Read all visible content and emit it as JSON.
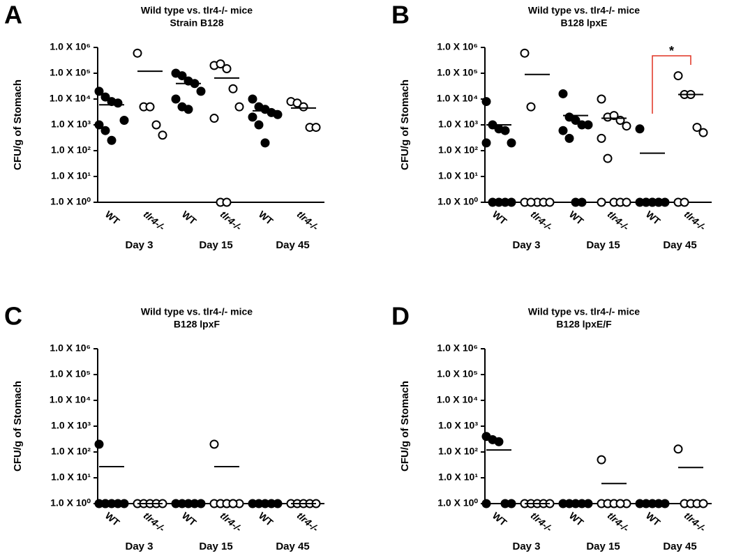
{
  "chart_data": [
    {
      "type": "dotplot",
      "panel": "A",
      "title": "Wild type vs. tlr4-/- mice",
      "subtitle": "Strain B128",
      "y_label": "CFU/g of Stomach",
      "log_y": true,
      "ylim": [
        1,
        1000000
      ],
      "yticks": [
        {
          "value": 1,
          "label": "1.0 X 10⁰"
        },
        {
          "value": 10,
          "label": "1.0 X 10¹"
        },
        {
          "value": 100,
          "label": "1.0 X 10²"
        },
        {
          "value": 1000,
          "label": "1.0 X 10³"
        },
        {
          "value": 10000,
          "label": "1.0 X 10⁴"
        },
        {
          "value": 100000,
          "label": "1.0 X 10⁵"
        },
        {
          "value": 1000000,
          "label": "1.0 X 10⁶"
        }
      ],
      "categories": [
        "WT",
        "tlr4-/-",
        "WT",
        "tlr4-/-",
        "WT",
        "tlr4-/-"
      ],
      "groups": [
        "Day 3",
        "Day 15",
        "Day 45"
      ],
      "filled": [
        true,
        false,
        true,
        false,
        true,
        false
      ],
      "values": [
        [
          20000,
          12000,
          8000,
          7000,
          1500,
          1000,
          600,
          250
        ],
        [
          600000,
          5000,
          5000,
          1000,
          400
        ],
        [
          100000,
          80000,
          50000,
          40000,
          20000,
          10000,
          5000,
          4000
        ],
        [
          200000,
          230000,
          150000,
          25000,
          5000,
          1800,
          1,
          1
        ],
        [
          10000,
          5000,
          4000,
          3000,
          2500,
          2000,
          1000,
          200
        ],
        [
          8000,
          7000,
          5000,
          800,
          800
        ]
      ],
      "means": [
        6000,
        120000,
        40000,
        65000,
        3500,
        4500
      ]
    },
    {
      "type": "dotplot",
      "panel": "B",
      "title": "Wild type vs. tlr4-/- mice",
      "subtitle": "B128 lpxE",
      "y_label": "CFU/g of Stomach",
      "log_y": true,
      "ylim": [
        1,
        1000000
      ],
      "yticks": [
        {
          "value": 1,
          "label": "1.0 X 10⁰"
        },
        {
          "value": 10,
          "label": "1.0 X 10¹"
        },
        {
          "value": 100,
          "label": "1.0 X 10²"
        },
        {
          "value": 1000,
          "label": "1.0 X 10³"
        },
        {
          "value": 10000,
          "label": "1.0 X 10⁴"
        },
        {
          "value": 100000,
          "label": "1.0 X 10⁵"
        },
        {
          "value": 1000000,
          "label": "1.0 X 10⁶"
        }
      ],
      "categories": [
        "WT",
        "tlr4-/-",
        "WT",
        "tlr4-/-",
        "WT",
        "tlr4-/-"
      ],
      "groups": [
        "Day 3",
        "Day 15",
        "Day 45"
      ],
      "filled": [
        true,
        false,
        true,
        false,
        true,
        false
      ],
      "values": [
        [
          8000,
          1000,
          700,
          600,
          200,
          200,
          1,
          1,
          1,
          1
        ],
        [
          600000,
          5000,
          1,
          1,
          1,
          1,
          1
        ],
        [
          16000,
          2000,
          1500,
          1000,
          1000,
          600,
          300,
          1,
          1
        ],
        [
          10000,
          2000,
          2300,
          1500,
          900,
          300,
          50,
          1,
          1,
          1,
          1
        ],
        [
          700,
          1,
          1,
          1,
          1,
          1,
          1,
          1,
          1
        ],
        [
          80000,
          15000,
          15000,
          800,
          500,
          1,
          1
        ]
      ],
      "means": [
        1000,
        90000,
        2300,
        1800,
        80,
        15000
      ],
      "significance": {
        "label": "*",
        "categories": [
          4,
          5
        ],
        "color": "#e03020"
      }
    },
    {
      "type": "dotplot",
      "panel": "C",
      "title": "Wild type vs. tlr4-/- mice",
      "subtitle": "B128 lpxF",
      "y_label": "CFU/g of Stomach",
      "log_y": true,
      "ylim": [
        1,
        1000000
      ],
      "yticks": [
        {
          "value": 1,
          "label": "1.0 X 10⁰"
        },
        {
          "value": 10,
          "label": "1.0 X 10¹"
        },
        {
          "value": 100,
          "label": "1.0 X 10²"
        },
        {
          "value": 1000,
          "label": "1.0 X 10³"
        },
        {
          "value": 10000,
          "label": "1.0 X 10⁴"
        },
        {
          "value": 100000,
          "label": "1.0 X 10⁵"
        },
        {
          "value": 1000000,
          "label": "1.0 X 10⁶"
        }
      ],
      "categories": [
        "WT",
        "tlr4-/-",
        "WT",
        "tlr4-/-",
        "WT",
        "tlr4-/-"
      ],
      "groups": [
        "Day 3",
        "Day 15",
        "Day 45"
      ],
      "filled": [
        true,
        false,
        true,
        false,
        true,
        false
      ],
      "values": [
        [
          200,
          1,
          1,
          1,
          1,
          1,
          1
        ],
        [
          1,
          1,
          1,
          1,
          1
        ],
        [
          1,
          1,
          1,
          1,
          1
        ],
        [
          200,
          1,
          1,
          1,
          1,
          1,
          1,
          1,
          1
        ],
        [
          1,
          1,
          1,
          1,
          1
        ],
        [
          1,
          1,
          1,
          1,
          1
        ]
      ],
      "means": [
        27,
        1,
        1,
        27,
        1,
        1
      ]
    },
    {
      "type": "dotplot",
      "panel": "D",
      "title": "Wild type vs. tlr4-/- mice",
      "subtitle": "B128 lpxE/F",
      "y_label": "CFU/g of Stomach",
      "log_y": true,
      "ylim": [
        1,
        1000000
      ],
      "yticks": [
        {
          "value": 1,
          "label": "1.0 X 10⁰"
        },
        {
          "value": 10,
          "label": "1.0 X 10¹"
        },
        {
          "value": 100,
          "label": "1.0 X 10²"
        },
        {
          "value": 1000,
          "label": "1.0 X 10³"
        },
        {
          "value": 10000,
          "label": "1.0 X 10⁴"
        },
        {
          "value": 100000,
          "label": "1.0 X 10⁵"
        },
        {
          "value": 1000000,
          "label": "1.0 X 10⁶"
        }
      ],
      "categories": [
        "WT",
        "tlr4-/-",
        "WT",
        "tlr4-/-",
        "WT",
        "tlr4-/-"
      ],
      "groups": [
        "Day 3",
        "Day 15",
        "Day 45"
      ],
      "filled": [
        true,
        false,
        true,
        false,
        true,
        false
      ],
      "values": [
        [
          400,
          300,
          250,
          1,
          1,
          1
        ],
        [
          1,
          1,
          1,
          1,
          1
        ],
        [
          1,
          1,
          1,
          1,
          1
        ],
        [
          50,
          1,
          1,
          1,
          1,
          1,
          1,
          1,
          1
        ],
        [
          1,
          1,
          1,
          1,
          1
        ],
        [
          130,
          1,
          1,
          1,
          1
        ]
      ],
      "means": [
        120,
        1,
        1,
        6,
        1,
        25
      ]
    }
  ]
}
